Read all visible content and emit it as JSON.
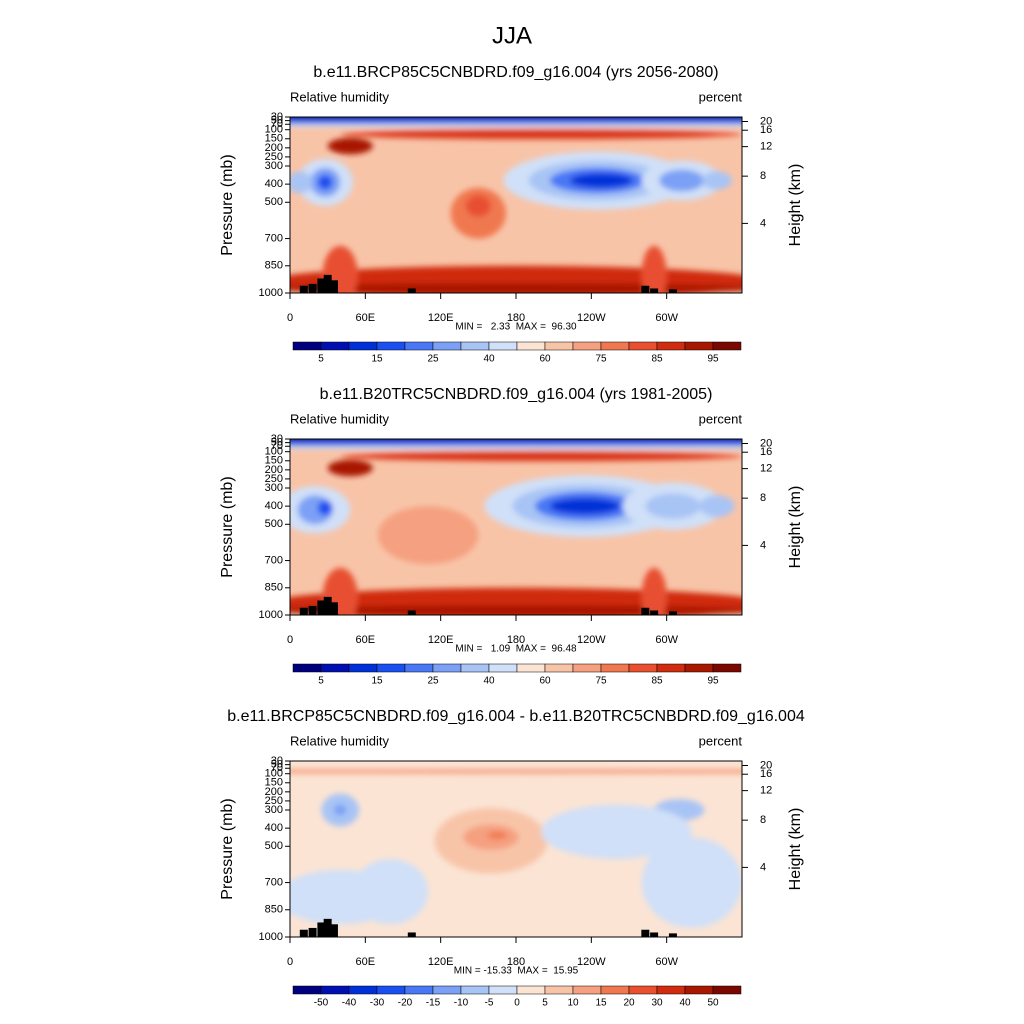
{
  "title": "JJA",
  "chart_data": [
    {
      "type": "contour",
      "title": "b.e11.BRCP85C5CNBDRD.f09_g16.004 (yrs 2056-2080)",
      "left_label": "Relative humidity",
      "right_label": "percent",
      "ylabel": "Pressure (mb)",
      "y2label": "Height (km)",
      "xlim": [
        0,
        360
      ],
      "xticks": [
        0,
        {
          "value": 60,
          "label": "60E"
        },
        {
          "value": 120,
          "label": "120E"
        },
        180,
        {
          "value": 240,
          "label": "120W"
        },
        {
          "value": 300,
          "label": "60W"
        }
      ],
      "ylim": [
        1000,
        30
      ],
      "yticks": [
        30,
        50,
        70,
        100,
        150,
        200,
        250,
        300,
        400,
        500,
        700,
        850,
        1000
      ],
      "y2ticks": [
        4,
        8,
        12,
        16,
        20
      ],
      "stats": "MIN =   2.33  MAX =  96.30",
      "colorbar": {
        "colors": [
          "#00007f",
          "#0010b0",
          "#0030d8",
          "#1a50f0",
          "#4a78f5",
          "#7ba0f5",
          "#a8c4f5",
          "#d0e0f8",
          "#fbe4d4",
          "#f8c4a8",
          "#f5a080",
          "#f07850",
          "#e85030",
          "#d02c10",
          "#a81800",
          "#7a0800"
        ],
        "levels": [
          5,
          10,
          15,
          20,
          25,
          30,
          40,
          50,
          60,
          70,
          75,
          80,
          85,
          90,
          95
        ],
        "label_every": 2
      }
    },
    {
      "type": "contour",
      "title": "b.e11.B20TRC5CNBDRD.f09_g16.004 (yrs 1981-2005)",
      "left_label": "Relative humidity",
      "right_label": "percent",
      "ylabel": "Pressure (mb)",
      "y2label": "Height (km)",
      "xlim": [
        0,
        360
      ],
      "xticks": [
        0,
        {
          "value": 60,
          "label": "60E"
        },
        {
          "value": 120,
          "label": "120E"
        },
        180,
        {
          "value": 240,
          "label": "120W"
        },
        {
          "value": 300,
          "label": "60W"
        }
      ],
      "ylim": [
        1000,
        30
      ],
      "yticks": [
        30,
        50,
        70,
        100,
        150,
        200,
        250,
        300,
        400,
        500,
        700,
        850,
        1000
      ],
      "y2ticks": [
        4,
        8,
        12,
        16,
        20
      ],
      "stats": "MIN =   1.09  MAX =  96.48",
      "colorbar": {
        "colors": [
          "#00007f",
          "#0010b0",
          "#0030d8",
          "#1a50f0",
          "#4a78f5",
          "#7ba0f5",
          "#a8c4f5",
          "#d0e0f8",
          "#fbe4d4",
          "#f8c4a8",
          "#f5a080",
          "#f07850",
          "#e85030",
          "#d02c10",
          "#a81800",
          "#7a0800"
        ],
        "levels": [
          5,
          10,
          15,
          20,
          25,
          30,
          40,
          50,
          60,
          70,
          75,
          80,
          85,
          90,
          95
        ],
        "label_every": 2
      }
    },
    {
      "type": "contour",
      "title": "b.e11.BRCP85C5CNBDRD.f09_g16.004 - b.e11.B20TRC5CNBDRD.f09_g16.004",
      "left_label": "Relative humidity",
      "right_label": "percent",
      "ylabel": "Pressure (mb)",
      "y2label": "Height (km)",
      "xlim": [
        0,
        360
      ],
      "xticks": [
        0,
        {
          "value": 60,
          "label": "60E"
        },
        {
          "value": 120,
          "label": "120E"
        },
        180,
        {
          "value": 240,
          "label": "120W"
        },
        {
          "value": 300,
          "label": "60W"
        }
      ],
      "ylim": [
        1000,
        30
      ],
      "yticks": [
        30,
        50,
        70,
        100,
        150,
        200,
        250,
        300,
        400,
        500,
        700,
        850,
        1000
      ],
      "y2ticks": [
        4,
        8,
        12,
        16,
        20
      ],
      "stats": "MIN = -15.33  MAX =  15.95",
      "colorbar": {
        "colors": [
          "#00007f",
          "#0010b0",
          "#0030d8",
          "#1a50f0",
          "#4a78f5",
          "#7ba0f5",
          "#a8c4f5",
          "#d0e0f8",
          "#fbe4d4",
          "#f8c4a8",
          "#f5a080",
          "#f07850",
          "#e85030",
          "#d02c10",
          "#a81800",
          "#7a0800"
        ],
        "levels": [
          -50,
          -40,
          -30,
          -20,
          -15,
          -10,
          -5,
          0,
          5,
          10,
          15,
          20,
          30,
          40,
          50
        ],
        "label_every": 1
      }
    }
  ]
}
